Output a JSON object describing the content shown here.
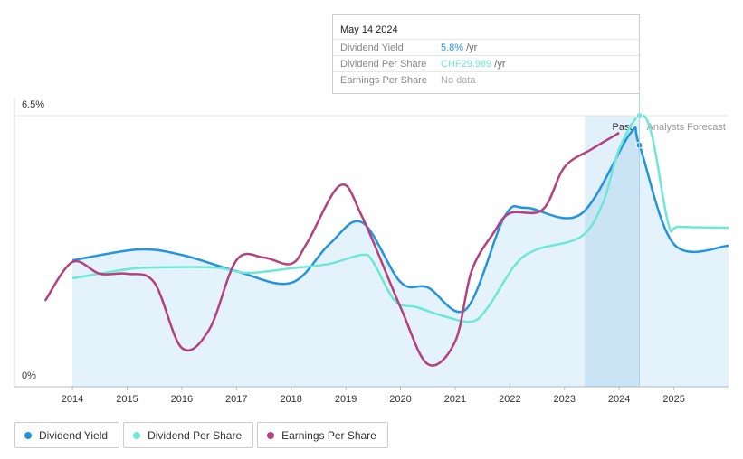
{
  "chart_data": {
    "type": "line",
    "xlim": [
      2012.94,
      2026.0
    ],
    "xticks": [
      2014,
      2015,
      2016,
      2017,
      2018,
      2019,
      2020,
      2021,
      2022,
      2023,
      2024,
      2025
    ],
    "ylim": [
      0,
      6.5
    ],
    "yticks": [
      {
        "value": 6.5,
        "label": "6.5%"
      },
      {
        "value": 0,
        "label": "0%"
      }
    ],
    "y2lim": [
      0,
      30
    ],
    "highlight": [
      2023.37,
      2024.37
    ],
    "highlight_label": "Past",
    "forecast_label": "Analysts Forecast",
    "series": [
      {
        "name": "Dividend Yield",
        "color": "#2394df",
        "fill": true,
        "x": [
          2014.0,
          2015.2,
          2016.0,
          2017.0,
          2018.0,
          2018.7,
          2019.3,
          2020.0,
          2020.5,
          2021.2,
          2021.9,
          2022.3,
          2023.3,
          2024.2,
          2024.37,
          2025.0,
          2026.0
        ],
        "values": [
          3.03,
          3.29,
          3.16,
          2.77,
          2.49,
          3.42,
          3.94,
          2.51,
          2.38,
          1.86,
          4.07,
          4.29,
          4.14,
          6.07,
          5.79,
          3.42,
          3.38
        ]
      },
      {
        "name": "Dividend Per Share",
        "color": "#6ee8d5",
        "axis": "y2",
        "x": [
          2014.0,
          2015.0,
          2015.5,
          2016.6,
          2017.2,
          2018.0,
          2018.7,
          2019.3,
          2019.5,
          2019.9,
          2020.3,
          2020.8,
          2021.3,
          2021.6,
          2022.1,
          2022.5,
          2023.3,
          2023.7,
          2024.0,
          2024.37,
          2024.6,
          2024.9,
          2025.1,
          2026.0
        ],
        "values": [
          12.0,
          13.0,
          13.2,
          13.2,
          12.6,
          13.1,
          13.6,
          14.6,
          13.8,
          9.5,
          8.8,
          7.8,
          7.2,
          8.8,
          13.5,
          15.2,
          16.6,
          20.3,
          26.3,
          29.989,
          27.8,
          18.0,
          17.7,
          17.6
        ]
      },
      {
        "name": "Earnings Per Share",
        "color": "#b5407e",
        "axis": "y2",
        "x": [
          2013.5,
          2014.0,
          2014.5,
          2015.0,
          2015.5,
          2016.0,
          2016.5,
          2017.0,
          2017.5,
          2018.0,
          2018.3,
          2018.9,
          2019.3,
          2020.0,
          2020.5,
          2021.0,
          2021.3,
          2021.7,
          2022.0,
          2022.6,
          2023.0,
          2023.5,
          2024.0
        ],
        "values": [
          9.5,
          13.8,
          12.5,
          12.5,
          11.5,
          4.3,
          6.3,
          14.0,
          14.3,
          13.6,
          16.0,
          22.3,
          18.8,
          8.8,
          2.5,
          5.0,
          12.8,
          17.0,
          19.2,
          19.6,
          24.3,
          26.3,
          28.1
        ]
      }
    ]
  },
  "tooltip": {
    "date": "May 14 2024",
    "rows": [
      {
        "label": "Dividend Yield",
        "value": "5.8%",
        "unit": "/yr"
      },
      {
        "label": "Dividend Per Share",
        "value": "CHF29.989",
        "unit": "/yr"
      },
      {
        "label": "Earnings Per Share",
        "value": "No data"
      }
    ]
  }
}
